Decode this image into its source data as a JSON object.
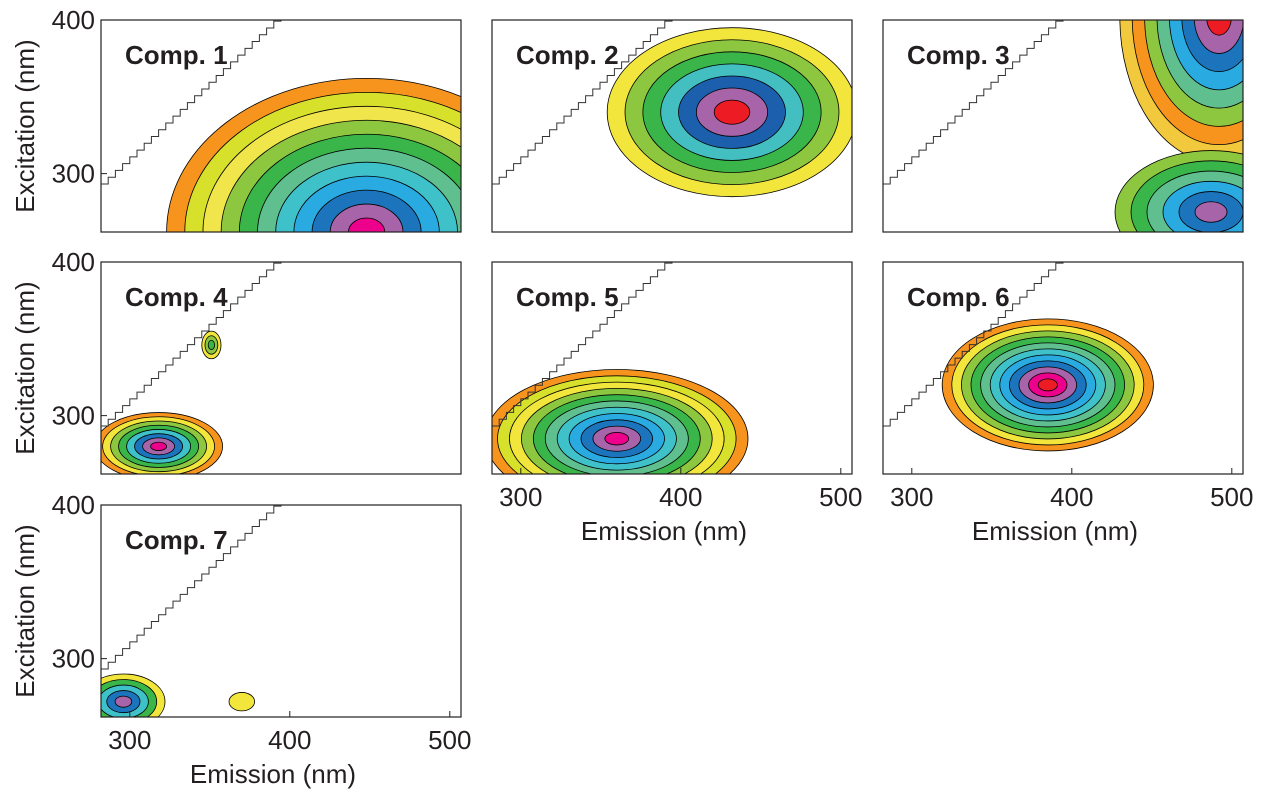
{
  "chart_data": [
    {
      "type": "contour",
      "title": "Comp. 1",
      "ylabel": "Excitation (nm)",
      "xlim": [
        282,
        507
      ],
      "ylim": [
        262,
        400
      ],
      "yticks": [
        300,
        400
      ],
      "peaks": [
        {
          "x": 448,
          "y": 262,
          "rx": 125,
          "ry": 100,
          "colors": [
            "#f7941d",
            "#d7e02a",
            "#f0e54a",
            "#8dc63f",
            "#39b54a",
            "#5fbf8f",
            "#3fc1c9",
            "#29abe2",
            "#1c75bc",
            "#a864a8",
            "#ec008c"
          ]
        }
      ]
    },
    {
      "type": "contour",
      "title": "Comp. 2",
      "xlim": [
        282,
        507
      ],
      "ylim": [
        262,
        400
      ],
      "peaks": [
        {
          "x": 432,
          "y": 340,
          "rx": 78,
          "ry": 55,
          "colors": [
            "#f2e63d",
            "#8dc63f",
            "#39b54a",
            "#44bfc1",
            "#1c5fad",
            "#a864a8",
            "#ed1c24"
          ]
        }
      ]
    },
    {
      "type": "contour",
      "title": "Comp. 3",
      "xlim": [
        282,
        507
      ],
      "ylim": [
        262,
        400
      ],
      "peaks": [
        {
          "x": 492,
          "y": 402,
          "rx": 62,
          "ry": 95,
          "colors": [
            "#f2c83d",
            "#f7941d",
            "#8dc63f",
            "#5fbf8f",
            "#29abe2",
            "#1c75bc",
            "#a864a8",
            "#ed1c24"
          ]
        },
        {
          "x": 487,
          "y": 275,
          "rx": 60,
          "ry": 40,
          "colors": [
            "#8dc63f",
            "#39b54a",
            "#5fbf8f",
            "#29abe2",
            "#1c75bc",
            "#a864a8"
          ]
        }
      ]
    },
    {
      "type": "contour",
      "title": "Comp. 4",
      "ylabel": "Excitation (nm)",
      "xlim": [
        282,
        507
      ],
      "ylim": [
        262,
        400
      ],
      "yticks": [
        300,
        400
      ],
      "peaks": [
        {
          "x": 318,
          "y": 280,
          "rx": 40,
          "ry": 22,
          "colors": [
            "#f7941d",
            "#f2e63d",
            "#8dc63f",
            "#39b54a",
            "#3fc1c9",
            "#1c75bc",
            "#a864a8",
            "#ec008c"
          ]
        },
        {
          "x": 351,
          "y": 346,
          "rx": 6,
          "ry": 9,
          "colors": [
            "#f2e63d",
            "#8dc63f",
            "#39b54a"
          ]
        }
      ]
    },
    {
      "type": "contour",
      "title": "Comp. 5",
      "xlabel": "Emission (nm)",
      "xlim": [
        282,
        507
      ],
      "ylim": [
        262,
        400
      ],
      "xticks": [
        300,
        400,
        500
      ],
      "peaks": [
        {
          "x": 360,
          "y": 285,
          "rx": 82,
          "ry": 45,
          "colors": [
            "#f7941d",
            "#d7e02a",
            "#f2e63d",
            "#8dc63f",
            "#39b54a",
            "#5fbf8f",
            "#3fc1c9",
            "#29abe2",
            "#1c75bc",
            "#a864a8",
            "#ec008c"
          ]
        }
      ]
    },
    {
      "type": "contour",
      "title": "Comp. 6",
      "xlabel": "Emission (nm)",
      "xlim": [
        282,
        507
      ],
      "ylim": [
        262,
        400
      ],
      "xticks": [
        300,
        400,
        500
      ],
      "peaks": [
        {
          "x": 385,
          "y": 320,
          "rx": 66,
          "ry": 43,
          "colors": [
            "#f7941d",
            "#f2e63d",
            "#8dc63f",
            "#39b54a",
            "#5fbf8f",
            "#3fc1c9",
            "#29abe2",
            "#1c75bc",
            "#a864a8",
            "#ec008c",
            "#ed1c24"
          ]
        }
      ]
    },
    {
      "type": "contour",
      "title": "Comp. 7",
      "ylabel": "Excitation (nm)",
      "xlabel": "Emission (nm)",
      "xlim": [
        282,
        507
      ],
      "ylim": [
        262,
        400
      ],
      "yticks": [
        300,
        400
      ],
      "xticks": [
        300,
        400,
        500
      ],
      "peaks": [
        {
          "x": 296,
          "y": 272,
          "rx": 26,
          "ry": 18,
          "colors": [
            "#f2e63d",
            "#39b54a",
            "#3fc1c9",
            "#1c75bc",
            "#a864a8"
          ]
        },
        {
          "x": 370,
          "y": 272,
          "rx": 8,
          "ry": 6,
          "colors": [
            "#f2e63d"
          ]
        }
      ]
    }
  ]
}
